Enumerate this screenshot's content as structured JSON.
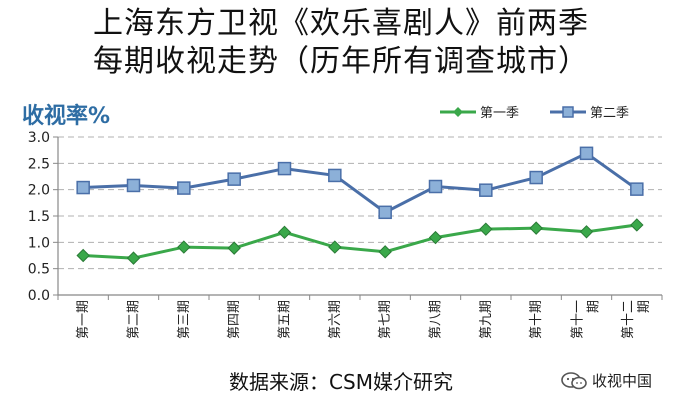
{
  "title_line1": "上海东方卫视《欢乐喜剧人》前两季",
  "title_line2": "每期收视走势（历年所有调查城市）",
  "unit_label": "收视率%",
  "source": "数据来源：CSM媒介研究",
  "watermark": "收视中国",
  "chart_data": {
    "type": "line",
    "categories": [
      "第一期",
      "第二期",
      "第三期",
      "第四期",
      "第五期",
      "第六期",
      "第七期",
      "第八期",
      "第九期",
      "第十期",
      "第十一期",
      "第十二期"
    ],
    "series": [
      {
        "name": "第一季",
        "color": "#3aa84a",
        "marker": "diamond",
        "values": [
          0.75,
          0.7,
          0.91,
          0.89,
          1.19,
          0.91,
          0.82,
          1.09,
          1.25,
          1.27,
          1.2,
          1.33
        ]
      },
      {
        "name": "第二季",
        "color": "#4a6fa8",
        "marker": "square",
        "values": [
          2.04,
          2.08,
          2.03,
          2.2,
          2.4,
          2.27,
          1.57,
          2.06,
          1.99,
          2.23,
          2.69,
          2.01
        ]
      }
    ],
    "yticks": [
      "0.0",
      "0.5",
      "1.0",
      "1.5",
      "2.0",
      "2.5",
      "3.0"
    ],
    "ylim": [
      0,
      3.0
    ],
    "grid": true,
    "legend_position": "top-right"
  }
}
